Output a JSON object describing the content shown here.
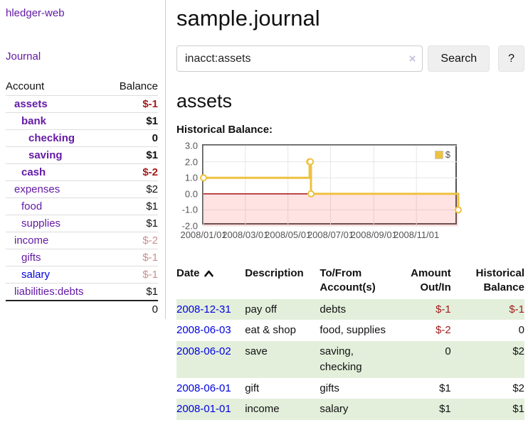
{
  "app": {
    "brand": "hledger-web",
    "nav_journal": "Journal"
  },
  "sidebar": {
    "headers": {
      "account": "Account",
      "balance": "Balance"
    },
    "accounts": [
      {
        "name": "assets",
        "level": 1,
        "balance": "$-1",
        "bold": true,
        "balance_color": "negative"
      },
      {
        "name": "bank",
        "level": 2,
        "balance": "$1",
        "bold": true,
        "balance_color": "normal"
      },
      {
        "name": "checking",
        "level": 3,
        "balance": "0",
        "bold": true,
        "balance_color": "normal"
      },
      {
        "name": "saving",
        "level": 3,
        "balance": "$1",
        "bold": true,
        "balance_color": "normal"
      },
      {
        "name": "cash",
        "level": 2,
        "balance": "$-2",
        "bold": true,
        "balance_color": "negative"
      },
      {
        "name": "expenses",
        "level": 1,
        "balance": "$2",
        "bold": false,
        "balance_color": "normal"
      },
      {
        "name": "food",
        "level": 2,
        "balance": "$1",
        "bold": false,
        "balance_color": "normal"
      },
      {
        "name": "supplies",
        "level": 2,
        "balance": "$1",
        "bold": false,
        "balance_color": "normal"
      },
      {
        "name": "income",
        "level": 1,
        "balance": "$-2",
        "bold": false,
        "balance_color": "negative-dim"
      },
      {
        "name": "gifts",
        "level": 2,
        "balance": "$-1",
        "bold": false,
        "balance_color": "negative-dim"
      },
      {
        "name": "salary",
        "level": 2,
        "balance": "$-1",
        "bold": false,
        "balance_color": "negative-dim",
        "link_color": "blue"
      },
      {
        "name": "liabilities:debts",
        "level": 1,
        "balance": "$1",
        "bold": false,
        "balance_color": "normal"
      }
    ],
    "total": "0"
  },
  "header": {
    "title": "sample.journal"
  },
  "search": {
    "value": "inacct:assets",
    "clear_icon": "×",
    "search_label": "Search",
    "help_label": "?"
  },
  "account_page": {
    "title": "assets",
    "chart_label": "Historical Balance:"
  },
  "chart_data": {
    "type": "line",
    "title": "Historical Balance:",
    "series": [
      {
        "name": "$",
        "color": "#EDC240",
        "step": true,
        "points": [
          [
            "2008-01-01",
            1
          ],
          [
            "2008-06-01",
            2
          ],
          [
            "2008-06-02",
            2
          ],
          [
            "2008-06-03",
            0
          ],
          [
            "2008-12-31",
            -1
          ]
        ]
      }
    ],
    "x_range": [
      "2008-01-01",
      "2008-12-31"
    ],
    "x_ticks": [
      "2008/01/01",
      "2008/03/01",
      "2008/05/01",
      "2008/07/01",
      "2008/09/01",
      "2008/11/01"
    ],
    "y_ticks": [
      "3.0",
      "2.0",
      "1.0",
      "0.0",
      "-1.0",
      "-2.0"
    ],
    "ylim": [
      -2,
      3
    ],
    "grid": true,
    "negative_region_color": "rgba(255,60,60,0.14)",
    "zero_line_color": "#a00000",
    "legend": {
      "label": "$",
      "position": "top-right"
    }
  },
  "register": {
    "headers": {
      "date": "Date",
      "description": "Description",
      "accounts": "To/From Account(s)",
      "amount": "Amount Out/In",
      "balance": "Historical Balance"
    },
    "rows": [
      {
        "date": "2008-12-31",
        "description": "pay off",
        "accounts": "debts",
        "amount": "$-1",
        "balance": "$-1"
      },
      {
        "date": "2008-06-03",
        "description": "eat & shop",
        "accounts": "food, supplies",
        "amount": "$-2",
        "balance": "0"
      },
      {
        "date": "2008-06-02",
        "description": "save",
        "accounts": "saving, checking",
        "amount": "0",
        "balance": "$2"
      },
      {
        "date": "2008-06-01",
        "description": "gift",
        "accounts": "gifts",
        "amount": "$1",
        "balance": "$2"
      },
      {
        "date": "2008-01-01",
        "description": "income",
        "accounts": "salary",
        "amount": "$1",
        "balance": "$1"
      }
    ]
  },
  "colors": {
    "accent_purple": "#641ba6",
    "link_blue": "#0000e0",
    "negative": "#a11d1d",
    "negative_dim": "#c98f8f",
    "row_stripe_green": "#e3efdb",
    "series_gold": "#EDC240",
    "chart_border": "#545454",
    "zero_line": "#a00000"
  }
}
